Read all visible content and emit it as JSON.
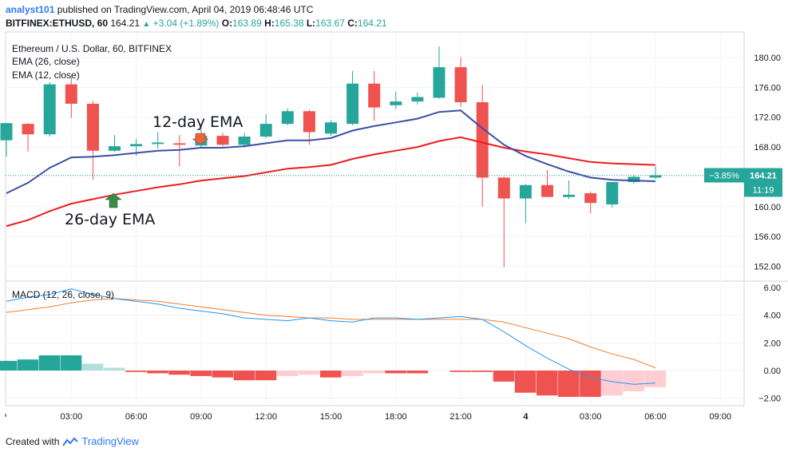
{
  "header": {
    "publisher": "analyst101",
    "published_text": "published on TradingView.com, April 04, 2019 06:48:46 UTC",
    "symbol": "BITFINEX:ETHUSD, 60",
    "last": "164.21",
    "change": "+3.04 (+1.89%)",
    "o_label": "O:",
    "o": "163.89",
    "h_label": "H:",
    "h": "165.38",
    "l_label": "L:",
    "l": "163.67",
    "c_label": "C:",
    "c": "164.21"
  },
  "footer": {
    "created_with": "Created with",
    "brand": "TradingView"
  },
  "colors": {
    "up": "#26a69a",
    "down": "#ef5350",
    "ema26": "#ee1c1c",
    "ema12": "#3d4fa3",
    "macd": "#2196f3",
    "signal": "#f57c2b",
    "hist_pos_strong": "#26a69a",
    "hist_pos_weak": "#b2dfdb",
    "hist_neg_strong": "#ef5350",
    "hist_neg_weak": "#ffcdd2"
  },
  "chart_data": [
    {
      "type": "candlestick",
      "title": "Ethereum / U.S. Dollar, 60, BITFINEX",
      "legend": [
        "EMA (26, close)",
        "EMA (12, close)"
      ],
      "ylim": [
        150,
        182
      ],
      "y_ticks": [
        "180.00",
        "176.00",
        "172.00",
        "168.00",
        "164.00",
        "160.00",
        "156.00",
        "152.00"
      ],
      "y_tick_values": [
        180,
        176,
        172,
        168,
        164,
        160,
        156,
        152
      ],
      "x_ticks": [
        "03:00",
        "06:00",
        "09:00",
        "12:00",
        "15:00",
        "18:00",
        "21:00",
        "4",
        "03:00",
        "06:00",
        "09:00"
      ],
      "x_tick_index": [
        3,
        6,
        9,
        12,
        15,
        18,
        21,
        24,
        27,
        30,
        33
      ],
      "last_price_label": "164.21",
      "change_label": "−3.85%",
      "countdown_label": "11:19",
      "annotations": [
        "12-day EMA",
        "26-day EMA"
      ],
      "candles": [
        {
          "o": 168.9,
          "h": 171.2,
          "l": 166.7,
          "c": 171.2
        },
        {
          "o": 171.1,
          "h": 171.2,
          "l": 167.4,
          "c": 169.7
        },
        {
          "o": 169.7,
          "h": 176.7,
          "l": 169.4,
          "c": 176.4
        },
        {
          "o": 176.4,
          "h": 177.4,
          "l": 171.9,
          "c": 173.8
        },
        {
          "o": 173.8,
          "h": 174.2,
          "l": 163.6,
          "c": 167.5
        },
        {
          "o": 167.5,
          "h": 169.6,
          "l": 167.3,
          "c": 168.1
        },
        {
          "o": 168.1,
          "h": 169.1,
          "l": 166.8,
          "c": 168.4
        },
        {
          "o": 168.4,
          "h": 170.0,
          "l": 167.8,
          "c": 168.6
        },
        {
          "o": 168.5,
          "h": 169.6,
          "l": 165.4,
          "c": 168.3
        },
        {
          "o": 168.2,
          "h": 171.0,
          "l": 167.8,
          "c": 169.5
        },
        {
          "o": 169.5,
          "h": 169.9,
          "l": 168.1,
          "c": 168.3
        },
        {
          "o": 168.3,
          "h": 169.9,
          "l": 167.9,
          "c": 169.4
        },
        {
          "o": 169.4,
          "h": 172.4,
          "l": 169.2,
          "c": 171.1
        },
        {
          "o": 171.1,
          "h": 173.2,
          "l": 170.9,
          "c": 172.8
        },
        {
          "o": 172.8,
          "h": 173.0,
          "l": 168.3,
          "c": 170.0
        },
        {
          "o": 169.8,
          "h": 171.6,
          "l": 169.5,
          "c": 171.3
        },
        {
          "o": 171.1,
          "h": 178.2,
          "l": 170.9,
          "c": 176.5
        },
        {
          "o": 176.5,
          "h": 178.2,
          "l": 171.5,
          "c": 173.3
        },
        {
          "o": 173.6,
          "h": 175.4,
          "l": 173.1,
          "c": 174.1
        },
        {
          "o": 174.1,
          "h": 175.3,
          "l": 173.7,
          "c": 174.7
        },
        {
          "o": 174.6,
          "h": 181.5,
          "l": 174.5,
          "c": 178.7
        },
        {
          "o": 178.7,
          "h": 180.0,
          "l": 173.4,
          "c": 174.0
        },
        {
          "o": 174.0,
          "h": 176.3,
          "l": 160.0,
          "c": 163.9
        },
        {
          "o": 163.9,
          "h": 164.0,
          "l": 151.9,
          "c": 161.1
        },
        {
          "o": 161.1,
          "h": 163.0,
          "l": 157.8,
          "c": 162.9
        },
        {
          "o": 162.9,
          "h": 164.9,
          "l": 161.3,
          "c": 161.3
        },
        {
          "o": 161.3,
          "h": 163.5,
          "l": 161.0,
          "c": 161.6
        },
        {
          "o": 161.8,
          "h": 162.0,
          "l": 159.1,
          "c": 160.5
        },
        {
          "o": 160.3,
          "h": 163.3,
          "l": 159.9,
          "c": 163.3
        },
        {
          "o": 163.3,
          "h": 164.3,
          "l": 163.1,
          "c": 164.0
        },
        {
          "o": 163.9,
          "h": 165.4,
          "l": 163.7,
          "c": 164.2
        }
      ],
      "ema12": [
        161.8,
        163.2,
        165.2,
        166.6,
        166.7,
        166.9,
        167.2,
        167.5,
        167.6,
        167.9,
        167.9,
        168.1,
        168.5,
        168.9,
        168.9,
        169.2,
        170.2,
        170.8,
        171.3,
        171.8,
        172.7,
        172.9,
        170.5,
        168.3,
        166.8,
        165.7,
        164.7,
        163.9,
        163.6,
        163.5,
        163.4
      ],
      "ema26": [
        157.4,
        158.2,
        159.4,
        160.4,
        161.0,
        161.6,
        162.1,
        162.6,
        163.0,
        163.5,
        163.8,
        164.1,
        164.6,
        165.1,
        165.3,
        165.6,
        166.4,
        167.0,
        167.5,
        168.0,
        168.8,
        169.3,
        168.6,
        167.9,
        167.4,
        167.0,
        166.5,
        166.0,
        165.8,
        165.7,
        165.6
      ]
    },
    {
      "type": "line+bar",
      "title": "MACD (12, 26, close, 9)",
      "ylim": [
        -2.3,
        6.5
      ],
      "y_ticks": [
        "6.00",
        "4.00",
        "2.00",
        "0.00",
        "−2.00"
      ],
      "y_tick_values": [
        6,
        4,
        2,
        0,
        -2
      ],
      "macd": [
        5.0,
        5.3,
        5.5,
        5.9,
        5.5,
        5.2,
        5.0,
        4.8,
        4.5,
        4.3,
        4.1,
        3.8,
        3.7,
        3.6,
        3.8,
        3.6,
        3.5,
        3.8,
        3.8,
        3.7,
        3.8,
        3.9,
        3.7,
        2.8,
        1.8,
        0.9,
        0.1,
        -0.5,
        -0.8,
        -1.0,
        -0.9
      ],
      "signal": [
        4.2,
        4.4,
        4.6,
        4.9,
        5.1,
        5.2,
        5.1,
        5.0,
        4.8,
        4.6,
        4.4,
        4.2,
        4.0,
        3.9,
        3.8,
        3.8,
        3.7,
        3.7,
        3.7,
        3.7,
        3.7,
        3.7,
        3.7,
        3.5,
        3.1,
        2.7,
        2.3,
        1.7,
        1.2,
        0.8,
        0.2
      ],
      "histogram": [
        0.7,
        0.8,
        1.1,
        1.1,
        0.5,
        0.2,
        -0.1,
        -0.2,
        -0.3,
        -0.4,
        -0.5,
        -0.7,
        -0.7,
        -0.4,
        -0.3,
        -0.5,
        -0.4,
        -0.2,
        -0.2,
        -0.2,
        0.0,
        -0.1,
        -0.1,
        -0.8,
        -1.6,
        -1.8,
        -1.9,
        -1.9,
        -1.8,
        -1.5,
        -1.2
      ]
    }
  ]
}
